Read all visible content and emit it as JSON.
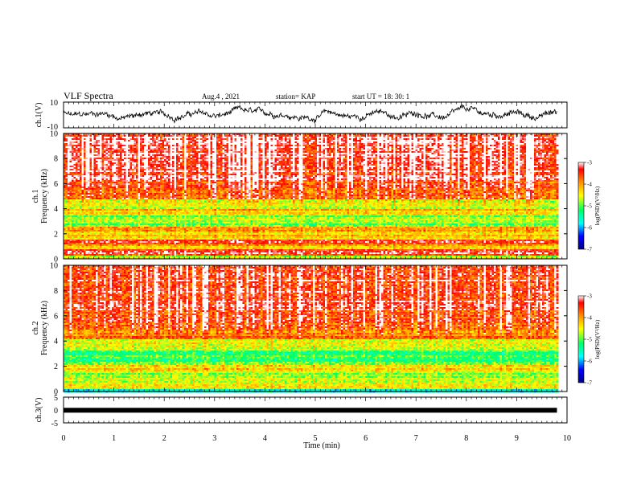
{
  "header": {
    "title": "VLF Spectra",
    "date": "Aug.4 , 2021",
    "station": "station= KAP",
    "start": "start UT = 18: 30: 1"
  },
  "chart_data": [
    {
      "type": "line",
      "name": "waveform-ch1",
      "ylabel": "ch.1(V)",
      "ylim": [
        -10,
        10
      ],
      "y_tick_labels": [
        "10",
        "-10"
      ],
      "xlim": [
        0,
        10
      ],
      "x_data_end": 9.8
    },
    {
      "type": "heatmap",
      "name": "spectrogram-ch1",
      "ylabel_line1": "ch.1",
      "ylabel_line2": "Frequency (kHz)",
      "ylim": [
        0,
        10
      ],
      "y_tick_labels": [
        "0",
        "2",
        "4",
        "6",
        "8",
        "10"
      ],
      "xlim": [
        0,
        10
      ],
      "colorbar": {
        "label": "log(PSD)(V²/Hz)",
        "range": [
          -7,
          -3
        ],
        "tick_labels": [
          "-3",
          "-4",
          "-5",
          "-6",
          "-7"
        ]
      },
      "bands": [
        {
          "from": 0.0,
          "to": 0.3,
          "level": -4.6
        },
        {
          "from": 0.3,
          "to": 0.8,
          "level": -3.4
        },
        {
          "from": 0.8,
          "to": 1.2,
          "level": -4.2
        },
        {
          "from": 1.2,
          "to": 1.5,
          "level": -3.5
        },
        {
          "from": 1.5,
          "to": 2.2,
          "level": -4.3
        },
        {
          "from": 2.2,
          "to": 2.6,
          "level": -3.8
        },
        {
          "from": 2.6,
          "to": 3.5,
          "level": -4.9
        },
        {
          "from": 3.5,
          "to": 4.0,
          "level": -4.3
        },
        {
          "from": 4.0,
          "to": 4.7,
          "level": -4.6
        },
        {
          "from": 4.7,
          "to": 5.3,
          "level": -3.7
        },
        {
          "from": 5.3,
          "to": 6.3,
          "level": -3.6
        },
        {
          "from": 6.3,
          "to": 10.0,
          "level": -3.3
        }
      ]
    },
    {
      "type": "heatmap",
      "name": "spectrogram-ch2",
      "ylabel_line1": "ch.2",
      "ylabel_line2": "Frequency (kHz)",
      "ylim": [
        0,
        10
      ],
      "y_tick_labels": [
        "0",
        "2",
        "4",
        "6",
        "8",
        "10"
      ],
      "xlim": [
        0,
        10
      ],
      "colorbar": {
        "label": "log(PSD)(V²/Hz)",
        "range": [
          -7,
          -3
        ],
        "tick_labels": [
          "-3",
          "-4",
          "-5",
          "-6",
          "-7"
        ]
      },
      "bands": [
        {
          "from": 0.0,
          "to": 0.2,
          "level": -5.8
        },
        {
          "from": 0.2,
          "to": 1.0,
          "level": -4.5
        },
        {
          "from": 1.0,
          "to": 1.6,
          "level": -4.8
        },
        {
          "from": 1.6,
          "to": 2.1,
          "level": -4.3
        },
        {
          "from": 2.1,
          "to": 3.3,
          "level": -5.1
        },
        {
          "from": 3.3,
          "to": 4.1,
          "level": -4.5
        },
        {
          "from": 4.1,
          "to": 5.0,
          "level": -3.8
        },
        {
          "from": 5.0,
          "to": 6.4,
          "level": -3.6
        },
        {
          "from": 6.4,
          "to": 10.0,
          "level": -3.3
        }
      ]
    },
    {
      "type": "line",
      "name": "waveform-ch3",
      "ylabel": "ch.3(V)",
      "ylim": [
        -5,
        5
      ],
      "y_tick_labels": [
        "5",
        "0",
        "-5"
      ],
      "xlim": [
        0,
        10
      ],
      "x_data_end": 9.8,
      "trace_level": -0.1
    }
  ],
  "x_axis": {
    "label": "Time (min)",
    "tick_labels": [
      "0",
      "1",
      "2",
      "3",
      "4",
      "5",
      "6",
      "7",
      "8",
      "9",
      "10"
    ]
  },
  "colors": {
    "trace": "#000000",
    "colormap": [
      "#000080",
      "#0000ff",
      "#00ffff",
      "#00ff66",
      "#ffff00",
      "#ff8800",
      "#ff0000",
      "#ffffff"
    ]
  }
}
